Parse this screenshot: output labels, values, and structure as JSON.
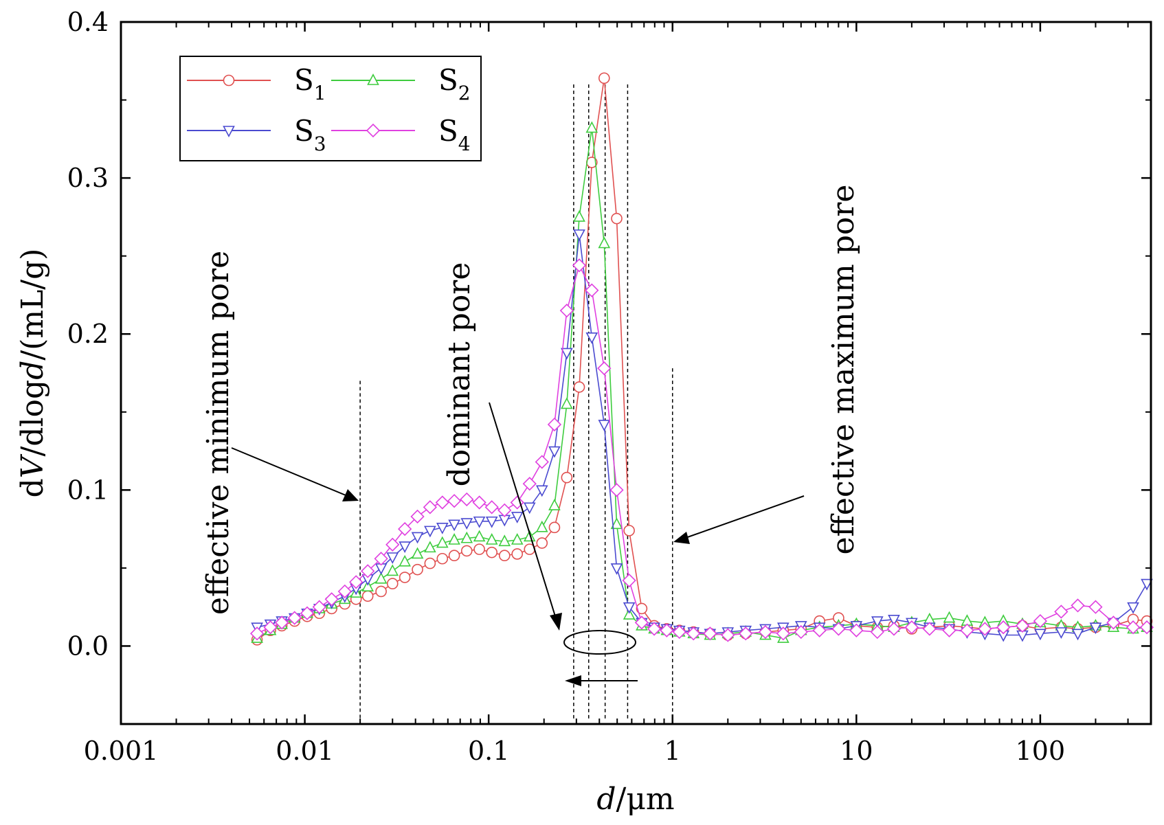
{
  "chart_data": {
    "type": "line",
    "title": "",
    "xlabel_var": "d",
    "xlabel_unit": "/μm",
    "ylabel_prefix": "d",
    "ylabel_var1": "V",
    "ylabel_mid": "/dlog",
    "ylabel_var2": "d",
    "ylabel_unit": "/(mL/g)",
    "xscale": "log",
    "xlim": [
      0.001,
      400
    ],
    "ylim": [
      -0.05,
      0.4
    ],
    "xticks": [
      {
        "value": 0.001,
        "label": "0.001"
      },
      {
        "value": 0.01,
        "label": "0.01"
      },
      {
        "value": 0.1,
        "label": "0.1"
      },
      {
        "value": 1,
        "label": "1"
      },
      {
        "value": 10,
        "label": "10"
      },
      {
        "value": 100,
        "label": "100"
      }
    ],
    "yticks": [
      {
        "value": 0.0,
        "label": "0.0"
      },
      {
        "value": 0.1,
        "label": "0.1"
      },
      {
        "value": 0.2,
        "label": "0.2"
      },
      {
        "value": 0.3,
        "label": "0.3"
      },
      {
        "value": 0.4,
        "label": "0.4"
      }
    ],
    "legend_position": "top-left",
    "series": [
      {
        "name": "S",
        "subscript": "1",
        "color": "#e05050",
        "marker": "circle",
        "x": [
          0.0055,
          0.0065,
          0.0075,
          0.0088,
          0.0103,
          0.012,
          0.014,
          0.0165,
          0.019,
          0.022,
          0.026,
          0.03,
          0.035,
          0.041,
          0.048,
          0.056,
          0.065,
          0.076,
          0.089,
          0.104,
          0.122,
          0.143,
          0.167,
          0.195,
          0.228,
          0.266,
          0.311,
          0.364,
          0.425,
          0.497,
          0.581,
          0.68,
          0.795,
          0.93,
          1.09,
          1.3,
          1.6,
          2,
          2.5,
          3.2,
          4,
          5,
          6.3,
          8,
          10,
          13,
          16,
          20,
          25,
          32,
          40,
          50,
          63,
          80,
          100,
          130,
          160,
          200,
          250,
          320,
          380
        ],
        "y": [
          0.004,
          0.01,
          0.013,
          0.016,
          0.019,
          0.021,
          0.024,
          0.027,
          0.03,
          0.032,
          0.035,
          0.04,
          0.044,
          0.049,
          0.053,
          0.056,
          0.058,
          0.061,
          0.062,
          0.06,
          0.058,
          0.059,
          0.062,
          0.066,
          0.076,
          0.108,
          0.166,
          0.31,
          0.364,
          0.274,
          0.074,
          0.024,
          0.013,
          0.011,
          0.01,
          0.009,
          0.008,
          0.007,
          0.008,
          0.009,
          0.01,
          0.011,
          0.016,
          0.018,
          0.013,
          0.012,
          0.013,
          0.011,
          0.012,
          0.013,
          0.012,
          0.011,
          0.012,
          0.013,
          0.011,
          0.012,
          0.011,
          0.012,
          0.013,
          0.017,
          0.016
        ]
      },
      {
        "name": "S",
        "subscript": "2",
        "color": "#3ecc3e",
        "marker": "triangle-up",
        "x": [
          0.0055,
          0.0065,
          0.0075,
          0.0088,
          0.0103,
          0.012,
          0.014,
          0.0165,
          0.019,
          0.022,
          0.026,
          0.03,
          0.035,
          0.041,
          0.048,
          0.056,
          0.065,
          0.076,
          0.089,
          0.104,
          0.122,
          0.143,
          0.167,
          0.195,
          0.228,
          0.266,
          0.311,
          0.364,
          0.425,
          0.497,
          0.581,
          0.68,
          0.795,
          0.93,
          1.09,
          1.3,
          1.6,
          2,
          2.5,
          3.2,
          4,
          5,
          6.3,
          8,
          10,
          13,
          16,
          20,
          25,
          32,
          40,
          50,
          63,
          80,
          100,
          130,
          160,
          200,
          250,
          320,
          380
        ],
        "y": [
          0.005,
          0.01,
          0.014,
          0.018,
          0.021,
          0.024,
          0.027,
          0.03,
          0.034,
          0.038,
          0.043,
          0.048,
          0.054,
          0.059,
          0.063,
          0.066,
          0.068,
          0.069,
          0.07,
          0.068,
          0.067,
          0.068,
          0.07,
          0.076,
          0.09,
          0.155,
          0.275,
          0.332,
          0.258,
          0.078,
          0.02,
          0.013,
          0.011,
          0.01,
          0.009,
          0.008,
          0.007,
          0.008,
          0.009,
          0.007,
          0.005,
          0.01,
          0.012,
          0.013,
          0.014,
          0.013,
          0.012,
          0.015,
          0.017,
          0.018,
          0.016,
          0.015,
          0.016,
          0.014,
          0.015,
          0.013,
          0.012,
          0.013,
          0.012,
          0.011,
          0.012
        ]
      },
      {
        "name": "S",
        "subscript": "3",
        "color": "#4a4ad0",
        "marker": "triangle-down",
        "x": [
          0.0055,
          0.0065,
          0.0075,
          0.0088,
          0.0103,
          0.012,
          0.014,
          0.0165,
          0.019,
          0.022,
          0.026,
          0.03,
          0.035,
          0.041,
          0.048,
          0.056,
          0.065,
          0.076,
          0.089,
          0.104,
          0.122,
          0.143,
          0.167,
          0.195,
          0.228,
          0.266,
          0.311,
          0.364,
          0.425,
          0.497,
          0.581,
          0.68,
          0.795,
          0.93,
          1.09,
          1.3,
          1.6,
          2,
          2.5,
          3.2,
          4,
          5,
          6.3,
          8,
          10,
          13,
          16,
          20,
          25,
          32,
          40,
          50,
          63,
          80,
          100,
          130,
          160,
          200,
          250,
          320,
          380
        ],
        "y": [
          0.012,
          0.014,
          0.016,
          0.018,
          0.021,
          0.024,
          0.028,
          0.032,
          0.037,
          0.043,
          0.05,
          0.057,
          0.064,
          0.07,
          0.074,
          0.076,
          0.078,
          0.079,
          0.08,
          0.08,
          0.081,
          0.083,
          0.089,
          0.1,
          0.125,
          0.188,
          0.264,
          0.198,
          0.142,
          0.05,
          0.025,
          0.015,
          0.012,
          0.011,
          0.01,
          0.009,
          0.008,
          0.009,
          0.01,
          0.011,
          0.012,
          0.013,
          0.012,
          0.011,
          0.013,
          0.016,
          0.017,
          0.015,
          0.012,
          0.011,
          0.009,
          0.008,
          0.007,
          0.007,
          0.008,
          0.009,
          0.008,
          0.012,
          0.015,
          0.025,
          0.04
        ]
      },
      {
        "name": "S",
        "subscript": "4",
        "color": "#e040e0",
        "marker": "diamond",
        "x": [
          0.0055,
          0.0065,
          0.0075,
          0.0088,
          0.0103,
          0.012,
          0.014,
          0.0165,
          0.019,
          0.022,
          0.026,
          0.03,
          0.035,
          0.041,
          0.048,
          0.056,
          0.065,
          0.076,
          0.089,
          0.104,
          0.122,
          0.143,
          0.167,
          0.195,
          0.228,
          0.266,
          0.311,
          0.364,
          0.425,
          0.497,
          0.581,
          0.68,
          0.795,
          0.93,
          1.09,
          1.3,
          1.6,
          2,
          2.5,
          3.2,
          4,
          5,
          6.3,
          8,
          10,
          13,
          16,
          20,
          25,
          32,
          40,
          50,
          63,
          80,
          100,
          130,
          160,
          200,
          250,
          320,
          380
        ],
        "y": [
          0.008,
          0.012,
          0.015,
          0.018,
          0.021,
          0.025,
          0.03,
          0.035,
          0.041,
          0.048,
          0.056,
          0.065,
          0.075,
          0.083,
          0.089,
          0.092,
          0.093,
          0.094,
          0.092,
          0.089,
          0.087,
          0.092,
          0.104,
          0.118,
          0.142,
          0.215,
          0.244,
          0.228,
          0.178,
          0.1,
          0.042,
          0.015,
          0.011,
          0.01,
          0.009,
          0.008,
          0.008,
          0.007,
          0.008,
          0.009,
          0.008,
          0.009,
          0.01,
          0.011,
          0.01,
          0.009,
          0.011,
          0.012,
          0.011,
          0.01,
          0.01,
          0.011,
          0.012,
          0.013,
          0.016,
          0.022,
          0.026,
          0.025,
          0.015,
          0.012,
          0.012
        ]
      }
    ],
    "reference_lines_x": [
      0.02,
      0.29,
      0.35,
      0.43,
      0.57,
      1.0
    ],
    "annotations": [
      {
        "id": "min",
        "text": "effective minimum pore"
      },
      {
        "id": "dominant",
        "text": "dominant pore"
      },
      {
        "id": "max",
        "text": "effective maximum pore"
      }
    ]
  }
}
